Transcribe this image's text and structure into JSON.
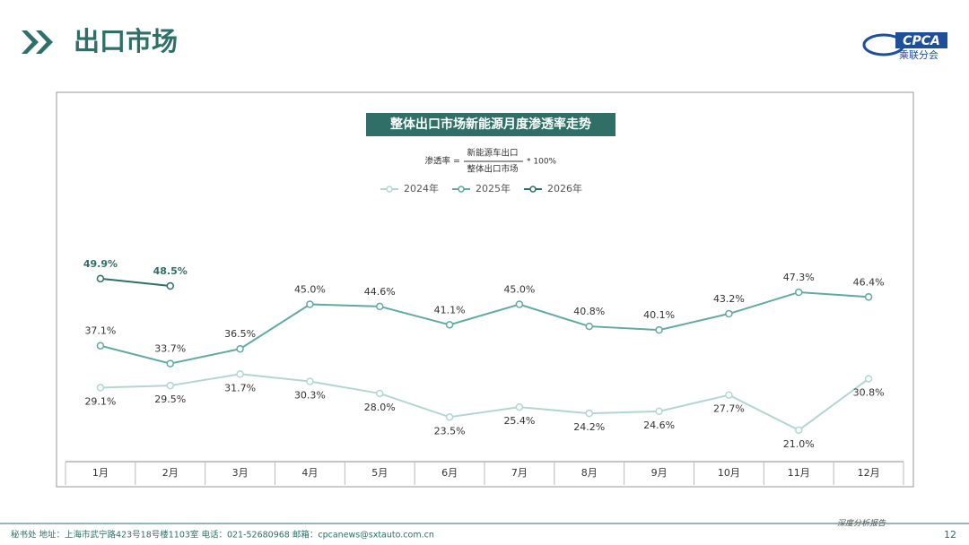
{
  "header": {
    "title": "出口市场",
    "logo_text": "CPCA",
    "logo_subtitle": "乘联分会"
  },
  "chart_data": {
    "type": "line",
    "title": "整体出口市场新能源月度渗透率走势",
    "formula": {
      "left": "渗透率 =",
      "numerator": "新能源车出口",
      "denominator": "整体出口市场",
      "right": "* 100%"
    },
    "categories": [
      "1月",
      "2月",
      "3月",
      "4月",
      "5月",
      "6月",
      "7月",
      "8月",
      "9月",
      "10月",
      "11月",
      "12月"
    ],
    "series": [
      {
        "name": "2024年",
        "color": "#b3d6cf",
        "values": [
          29.1,
          29.5,
          31.7,
          30.3,
          28.0,
          23.5,
          25.4,
          24.2,
          24.6,
          27.7,
          21.0,
          30.8
        ],
        "value_labels": [
          "29.1%",
          "29.5%",
          "31.7%",
          "30.3%",
          "28.0%",
          "23.5%",
          "25.4%",
          "24.2%",
          "24.6%",
          "27.7%",
          "21.0%",
          "30.8%"
        ]
      },
      {
        "name": "2025年",
        "color": "#62a9a1",
        "values": [
          37.1,
          33.7,
          36.5,
          45.0,
          44.6,
          41.1,
          45.0,
          40.8,
          40.1,
          43.2,
          47.3,
          46.4
        ],
        "value_labels": [
          "37.1%",
          "33.7%",
          "36.5%",
          "45.0%",
          "44.6%",
          "41.1%",
          "45.0%",
          "40.8%",
          "40.1%",
          "43.2%",
          "47.3%",
          "46.4%"
        ]
      },
      {
        "name": "2026年",
        "color": "#2f6f68",
        "values": [
          49.9,
          48.5,
          null,
          null,
          null,
          null,
          null,
          null,
          null,
          null,
          null,
          null
        ],
        "value_labels": [
          "49.9%",
          "48.5%",
          null,
          null,
          null,
          null,
          null,
          null,
          null,
          null,
          null,
          null
        ]
      }
    ],
    "ylim": [
      15,
      55
    ]
  },
  "footer": {
    "contact": "秘书处   地址：上海市武宁路423号18号楼1103室   电话：021-52680968   邮箱：cpcanews@sxtauto.com.cn",
    "report": "深度分析报告",
    "page": "12"
  }
}
